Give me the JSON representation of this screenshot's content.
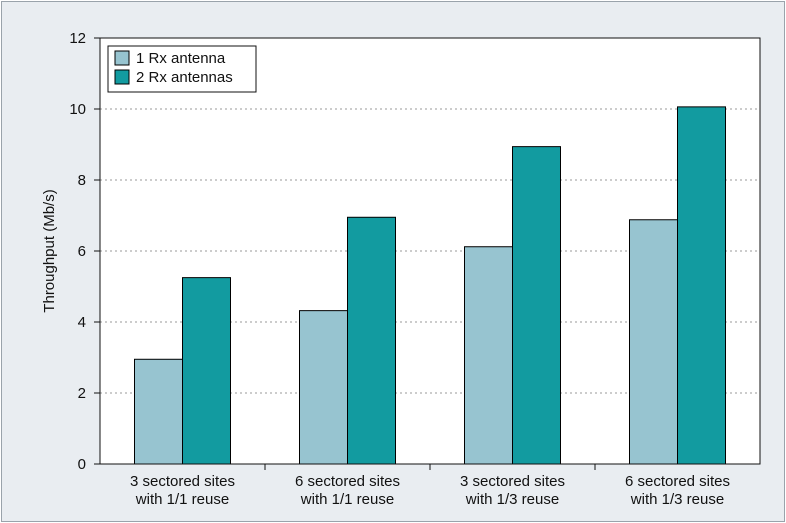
{
  "chart_data": {
    "type": "bar",
    "ylabel": "Throughput (Mb/s)",
    "xlabel": "",
    "ylim": [
      0,
      12
    ],
    "yticks": [
      0,
      2,
      4,
      6,
      8,
      10,
      12
    ],
    "grid": true,
    "legend_position": "top-left",
    "categories": [
      [
        "3 sectored sites",
        "with 1/1 reuse"
      ],
      [
        "6 sectored sites",
        "with 1/1 reuse"
      ],
      [
        "3 sectored sites",
        "with 1/3 reuse"
      ],
      [
        "6 sectored sites",
        "with 1/3 reuse"
      ]
    ],
    "series": [
      {
        "name": "1 Rx antenna",
        "color": "#97c4d0",
        "values": [
          2.95,
          4.32,
          6.12,
          6.88
        ]
      },
      {
        "name": "2 Rx antennas",
        "color": "#129ba0",
        "values": [
          5.25,
          6.95,
          8.94,
          10.06
        ]
      }
    ]
  }
}
